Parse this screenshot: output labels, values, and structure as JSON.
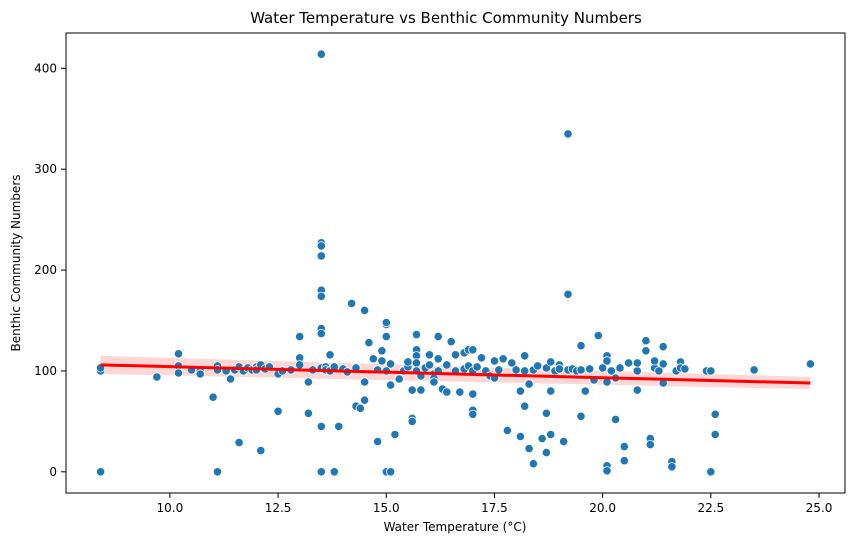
{
  "chart_data": {
    "type": "scatter",
    "title": "Water Temperature vs Benthic Community Numbers",
    "xlabel": "Water Temperature (°C)",
    "ylabel": "Benthic Community Numbers",
    "xlim": [
      7.6,
      25.6
    ],
    "ylim": [
      -21,
      435
    ],
    "xticks": [
      10.0,
      12.5,
      15.0,
      17.5,
      20.0,
      22.5,
      25.0
    ],
    "xtick_labels": [
      "10.0",
      "12.5",
      "15.0",
      "17.5",
      "20.0",
      "22.5",
      "25.0"
    ],
    "yticks": [
      0,
      100,
      200,
      300,
      400
    ],
    "ytick_labels": [
      "0",
      "100",
      "200",
      "300",
      "400"
    ],
    "grid": false,
    "colors": {
      "points": "#1f77b4",
      "fit_line": "#ff0000",
      "confidence_band": "#ffcccc"
    },
    "regression": {
      "x": [
        8.4,
        24.8
      ],
      "y": [
        106,
        88
      ],
      "ci_lower_start": 97,
      "ci_upper_start": 115,
      "ci_lower_end": 82,
      "ci_upper_end": 94
    },
    "points": [
      [
        8.4,
        100
      ],
      [
        8.4,
        103
      ],
      [
        8.4,
        0
      ],
      [
        9.7,
        94
      ],
      [
        10.2,
        117
      ],
      [
        10.2,
        105
      ],
      [
        10.2,
        98
      ],
      [
        10.5,
        101
      ],
      [
        10.7,
        100
      ],
      [
        10.7,
        97
      ],
      [
        11.0,
        74
      ],
      [
        11.1,
        105
      ],
      [
        11.1,
        101
      ],
      [
        11.1,
        0
      ],
      [
        11.3,
        100
      ],
      [
        11.4,
        92
      ],
      [
        11.5,
        101
      ],
      [
        11.6,
        29
      ],
      [
        11.6,
        104
      ],
      [
        11.7,
        100
      ],
      [
        11.8,
        103
      ],
      [
        11.9,
        101
      ],
      [
        12.0,
        104
      ],
      [
        12.0,
        101
      ],
      [
        12.1,
        106
      ],
      [
        12.1,
        21
      ],
      [
        12.2,
        102
      ],
      [
        12.3,
        104
      ],
      [
        12.5,
        60
      ],
      [
        12.5,
        97
      ],
      [
        12.6,
        100
      ],
      [
        12.8,
        101
      ],
      [
        13.0,
        134
      ],
      [
        13.0,
        113
      ],
      [
        13.0,
        106
      ],
      [
        13.2,
        58
      ],
      [
        13.2,
        89
      ],
      [
        13.3,
        101
      ],
      [
        13.5,
        414
      ],
      [
        13.5,
        227
      ],
      [
        13.5,
        224
      ],
      [
        13.5,
        214
      ],
      [
        13.5,
        180
      ],
      [
        13.5,
        174
      ],
      [
        13.5,
        142
      ],
      [
        13.5,
        137
      ],
      [
        13.5,
        103
      ],
      [
        13.5,
        45
      ],
      [
        13.5,
        0
      ],
      [
        13.6,
        104
      ],
      [
        13.6,
        101
      ],
      [
        13.7,
        116
      ],
      [
        13.7,
        100
      ],
      [
        13.8,
        104
      ],
      [
        13.8,
        0
      ],
      [
        13.9,
        45
      ],
      [
        14.0,
        102
      ],
      [
        14.1,
        99
      ],
      [
        14.2,
        167
      ],
      [
        14.3,
        65
      ],
      [
        14.3,
        103
      ],
      [
        14.4,
        63
      ],
      [
        14.5,
        160
      ],
      [
        14.5,
        89
      ],
      [
        14.5,
        71
      ],
      [
        14.6,
        128
      ],
      [
        14.7,
        112
      ],
      [
        14.8,
        101
      ],
      [
        14.8,
        30
      ],
      [
        14.9,
        120
      ],
      [
        14.9,
        110
      ],
      [
        15.0,
        146
      ],
      [
        15.0,
        148
      ],
      [
        15.0,
        134
      ],
      [
        15.0,
        100
      ],
      [
        15.0,
        0
      ],
      [
        15.1,
        107
      ],
      [
        15.1,
        0
      ],
      [
        15.1,
        86
      ],
      [
        15.2,
        37
      ],
      [
        15.3,
        92
      ],
      [
        15.4,
        100
      ],
      [
        15.5,
        104
      ],
      [
        15.5,
        109
      ],
      [
        15.6,
        53
      ],
      [
        15.6,
        50
      ],
      [
        15.6,
        81
      ],
      [
        15.7,
        136
      ],
      [
        15.7,
        121
      ],
      [
        15.7,
        115
      ],
      [
        15.7,
        108
      ],
      [
        15.7,
        100
      ],
      [
        15.8,
        81
      ],
      [
        15.8,
        95
      ],
      [
        15.9,
        103
      ],
      [
        16.0,
        116
      ],
      [
        16.0,
        106
      ],
      [
        16.1,
        97
      ],
      [
        16.1,
        93
      ],
      [
        16.1,
        89
      ],
      [
        16.2,
        134
      ],
      [
        16.2,
        112
      ],
      [
        16.2,
        100
      ],
      [
        16.3,
        82
      ],
      [
        16.4,
        106
      ],
      [
        16.4,
        79
      ],
      [
        16.5,
        129
      ],
      [
        16.6,
        100
      ],
      [
        16.6,
        116
      ],
      [
        16.7,
        79
      ],
      [
        16.8,
        102
      ],
      [
        16.8,
        118
      ],
      [
        16.9,
        121
      ],
      [
        16.9,
        105
      ],
      [
        17.0,
        121
      ],
      [
        17.0,
        100
      ],
      [
        17.0,
        61
      ],
      [
        17.0,
        57
      ],
      [
        17.0,
        77
      ],
      [
        17.1,
        104
      ],
      [
        17.2,
        113
      ],
      [
        17.3,
        100
      ],
      [
        17.4,
        95
      ],
      [
        17.5,
        110
      ],
      [
        17.5,
        93
      ],
      [
        17.6,
        101
      ],
      [
        17.7,
        112
      ],
      [
        17.8,
        41
      ],
      [
        17.9,
        108
      ],
      [
        18.0,
        101
      ],
      [
        18.1,
        35
      ],
      [
        18.1,
        80
      ],
      [
        18.2,
        100
      ],
      [
        18.2,
        65
      ],
      [
        18.2,
        115
      ],
      [
        18.3,
        87
      ],
      [
        18.3,
        23
      ],
      [
        18.4,
        101
      ],
      [
        18.4,
        8
      ],
      [
        18.5,
        105
      ],
      [
        18.6,
        33
      ],
      [
        18.7,
        103
      ],
      [
        18.7,
        58
      ],
      [
        18.7,
        19
      ],
      [
        18.8,
        37
      ],
      [
        18.8,
        109
      ],
      [
        18.8,
        80
      ],
      [
        18.9,
        100
      ],
      [
        19.0,
        106
      ],
      [
        19.0,
        102
      ],
      [
        19.1,
        30
      ],
      [
        19.2,
        335
      ],
      [
        19.2,
        176
      ],
      [
        19.2,
        101
      ],
      [
        19.3,
        102
      ],
      [
        19.4,
        100
      ],
      [
        19.5,
        125
      ],
      [
        19.5,
        55
      ],
      [
        19.5,
        101
      ],
      [
        19.6,
        80
      ],
      [
        19.7,
        102
      ],
      [
        19.8,
        91
      ],
      [
        19.9,
        135
      ],
      [
        20.0,
        103
      ],
      [
        20.1,
        115
      ],
      [
        20.1,
        110
      ],
      [
        20.1,
        89
      ],
      [
        20.1,
        6
      ],
      [
        20.1,
        1
      ],
      [
        20.2,
        100
      ],
      [
        20.3,
        52
      ],
      [
        20.3,
        93
      ],
      [
        20.4,
        103
      ],
      [
        20.5,
        25
      ],
      [
        20.5,
        11
      ],
      [
        20.6,
        108
      ],
      [
        20.8,
        100
      ],
      [
        20.8,
        108
      ],
      [
        20.8,
        81
      ],
      [
        21.0,
        130
      ],
      [
        21.0,
        120
      ],
      [
        21.1,
        33
      ],
      [
        21.1,
        27
      ],
      [
        21.2,
        103
      ],
      [
        21.2,
        110
      ],
      [
        21.3,
        100
      ],
      [
        21.4,
        124
      ],
      [
        21.4,
        107
      ],
      [
        21.4,
        88
      ],
      [
        21.6,
        10
      ],
      [
        21.6,
        5
      ],
      [
        21.7,
        100
      ],
      [
        21.8,
        109
      ],
      [
        21.8,
        103
      ],
      [
        21.9,
        102
      ],
      [
        22.4,
        100
      ],
      [
        22.5,
        0
      ],
      [
        22.5,
        100
      ],
      [
        22.6,
        57
      ],
      [
        22.6,
        37
      ],
      [
        23.5,
        101
      ],
      [
        24.8,
        107
      ]
    ]
  }
}
